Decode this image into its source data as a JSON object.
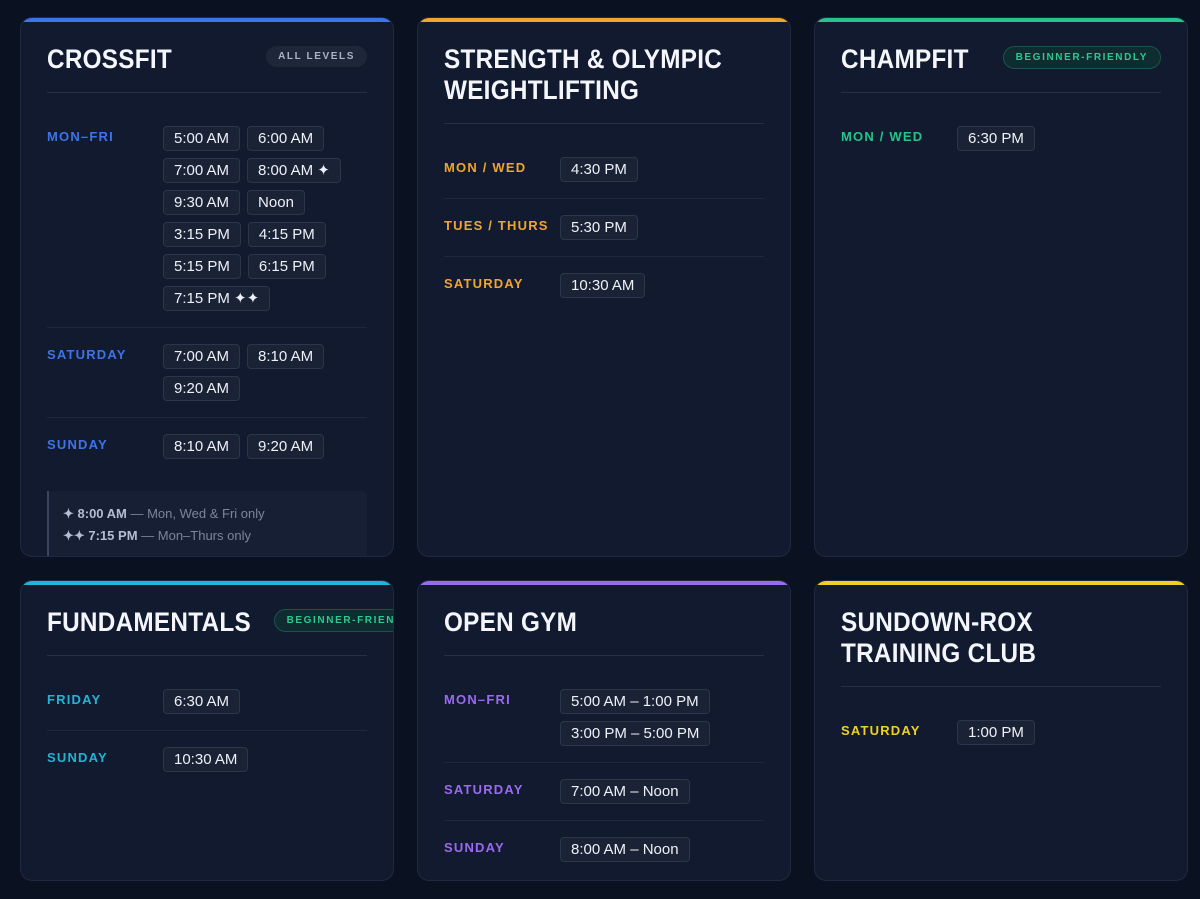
{
  "colors": {
    "crossfit": "#3d74ea",
    "strength": "#f0a530",
    "champfit": "#22c58b",
    "fundamentals": "#22b4d6",
    "open_gym": "#9a6af0",
    "sundown": "#f0d024"
  },
  "cards": [
    {
      "title": "CROSSFIT",
      "badge": "ALL LEVELS",
      "rows": [
        {
          "day": "MON–FRI",
          "times": [
            "5:00 AM",
            "6:00 AM",
            "7:00 AM",
            "8:00 AM ✦",
            "9:30 AM",
            "Noon",
            "3:15 PM",
            "4:15 PM",
            "5:15 PM",
            "6:15 PM",
            "7:15 PM ✦✦"
          ]
        },
        {
          "day": "SATURDAY",
          "times": [
            "7:00 AM",
            "8:10 AM",
            "9:20 AM"
          ]
        },
        {
          "day": "SUNDAY",
          "times": [
            "8:10 AM",
            "9:20 AM"
          ]
        }
      ],
      "notes": [
        {
          "mark": "✦ 8:00 AM",
          "text": " — Mon, Wed & Fri only"
        },
        {
          "mark": "✦✦ 7:15 PM",
          "text": " — Mon–Thurs only"
        }
      ]
    },
    {
      "title": "STRENGTH & OLYMPIC WEIGHTLIFTING",
      "rows": [
        {
          "day": "MON / WED",
          "times": [
            "4:30 PM"
          ]
        },
        {
          "day": "TUES / THURS",
          "times": [
            "5:30 PM"
          ]
        },
        {
          "day": "SATURDAY",
          "times": [
            "10:30 AM"
          ]
        }
      ]
    },
    {
      "title": "CHAMPFIT",
      "badge": "BEGINNER-FRIENDLY",
      "rows": [
        {
          "day": "MON / WED",
          "times": [
            "6:30 PM"
          ]
        }
      ]
    },
    {
      "title": "FUNDAMENTALS",
      "badge": "BEGINNER-FRIENDLY",
      "rows": [
        {
          "day": "FRIDAY",
          "times": [
            "6:30 AM"
          ]
        },
        {
          "day": "SUNDAY",
          "times": [
            "10:30 AM"
          ]
        }
      ]
    },
    {
      "title": "OPEN GYM",
      "rows": [
        {
          "day": "MON–FRI",
          "times": [
            "5:00 AM – 1:00 PM",
            "3:00 PM – 5:00 PM"
          ]
        },
        {
          "day": "SATURDAY",
          "times": [
            "7:00 AM – Noon"
          ]
        },
        {
          "day": "SUNDAY",
          "times": [
            "8:00 AM – Noon"
          ]
        }
      ]
    },
    {
      "title": "SUNDOWN-ROX TRAINING CLUB",
      "rows": [
        {
          "day": "SATURDAY",
          "times": [
            "1:00 PM"
          ]
        }
      ]
    }
  ]
}
